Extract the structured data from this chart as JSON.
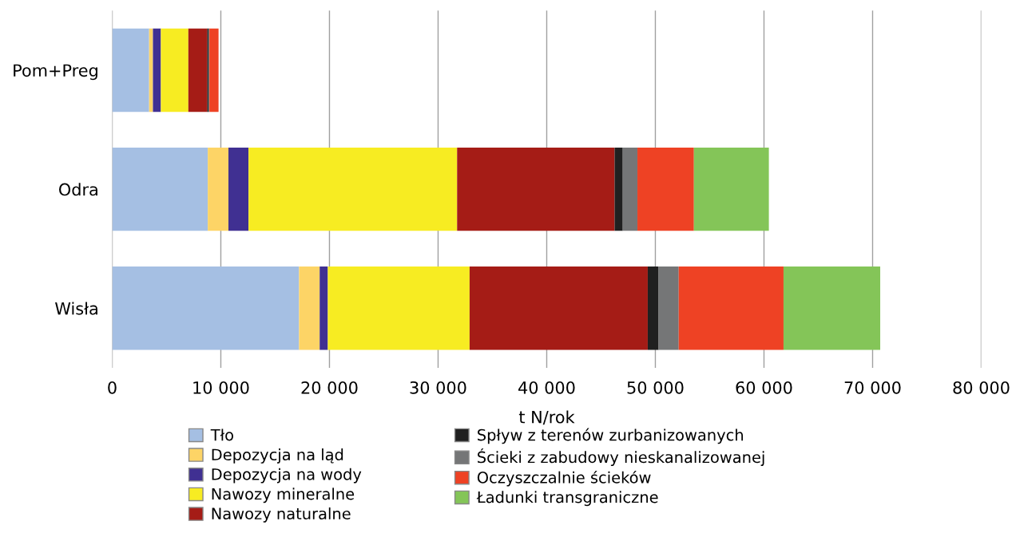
{
  "chart_data": {
    "type": "bar",
    "orientation": "horizontal",
    "stacked": true,
    "categories": [
      "Pom+Preg",
      "Odra",
      "Wisła"
    ],
    "xlabel": "t N/rok",
    "xlim": [
      0,
      80000
    ],
    "xticks": [
      0,
      {
        "value": 10000,
        "label": "10 000"
      },
      {
        "value": 20000,
        "label": "20 000"
      },
      {
        "value": 30000,
        "label": "30 000"
      },
      {
        "value": 40000,
        "label": "40 000"
      },
      {
        "value": 50000,
        "label": "50 000"
      },
      {
        "value": 60000,
        "label": "60 000"
      },
      {
        "value": 70000,
        "label": "70 000"
      },
      {
        "value": 80000,
        "label": "80 000"
      }
    ],
    "grid": "x",
    "legend": "bottom",
    "series": [
      {
        "name": "Tło",
        "color": "#a5bfe3",
        "values": [
          3400,
          8800,
          17200
        ]
      },
      {
        "name": "Depozycja na ląd",
        "color": "#fdd466",
        "values": [
          350,
          1900,
          1900
        ]
      },
      {
        "name": "Depozycja na wody",
        "color": "#403092",
        "values": [
          730,
          1850,
          750
        ]
      },
      {
        "name": "Nawozy mineralne",
        "color": "#f7ec22",
        "values": [
          2530,
          19200,
          13050
        ]
      },
      {
        "name": "Nawozy naturalne",
        "color": "#a51c16",
        "values": [
          1740,
          14500,
          16400
        ]
      },
      {
        "name": "Spływ z terenów zurbanizowanych",
        "color": "#202020",
        "values": [
          140,
          750,
          1000
        ]
      },
      {
        "name": "Ścieki z zabudowy nieskanalizowanej",
        "color": "#757677",
        "values": [
          50,
          1350,
          1850
        ]
      },
      {
        "name": "Oczyszczalnie ścieków",
        "color": "#ee4224",
        "values": [
          850,
          5200,
          9650
        ]
      },
      {
        "name": "Ładunki transgraniczne",
        "color": "#84c558",
        "values": [
          0,
          6900,
          8900
        ]
      }
    ]
  }
}
